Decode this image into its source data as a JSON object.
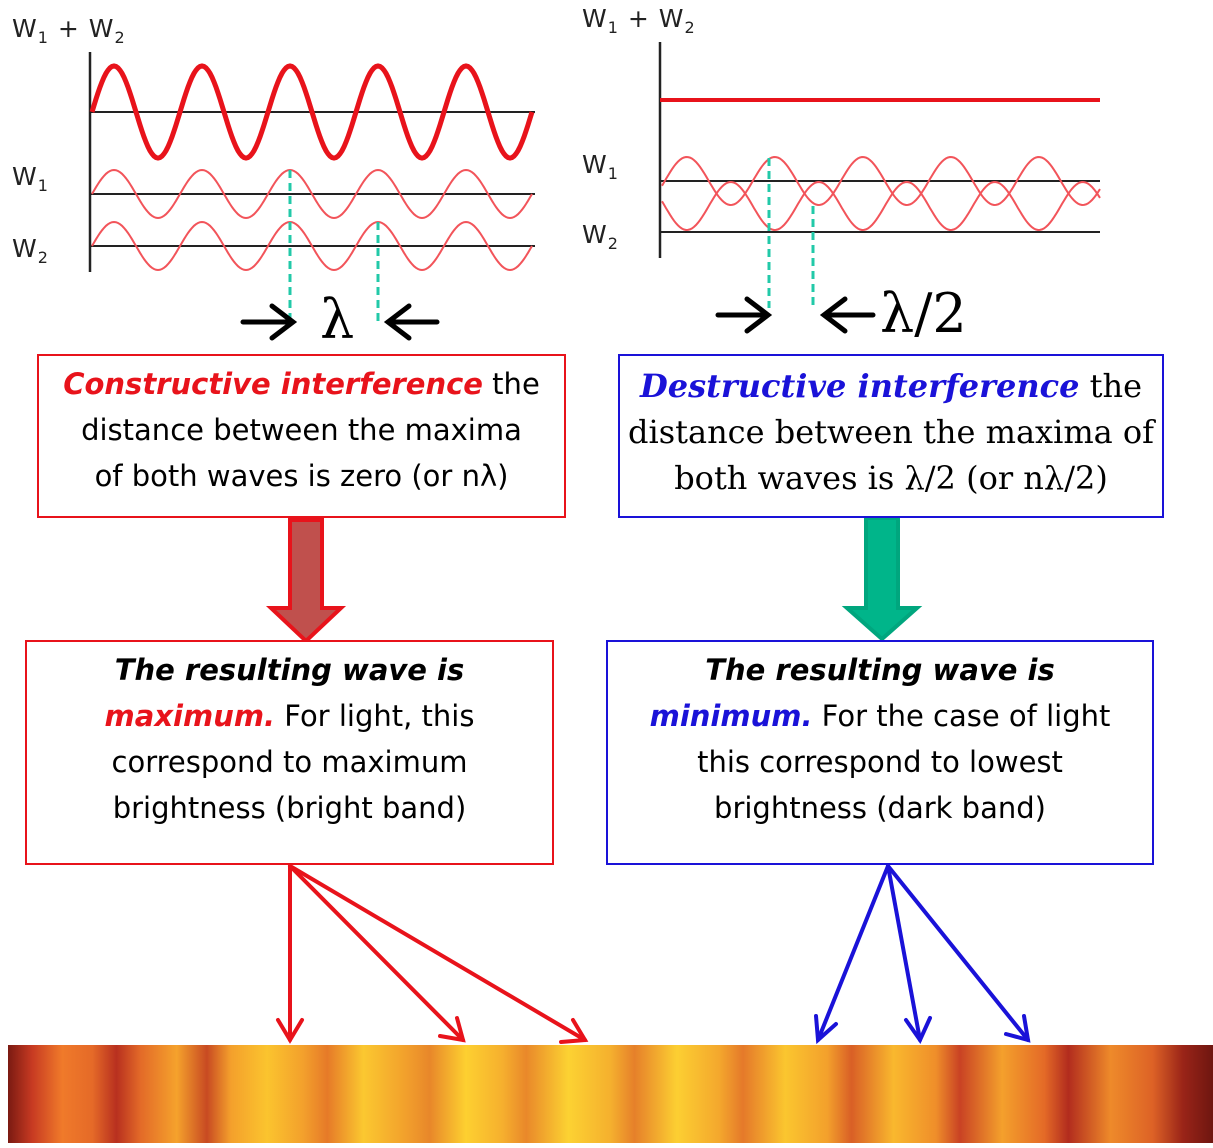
{
  "left_panel": {
    "label_sum": "W",
    "label_w1": "W",
    "label_w2": "W",
    "wavelength_symbol": "λ",
    "box1_title": "Constructive interference",
    "box1_text_a": " the",
    "box1_text_b": "distance between the maxima",
    "box1_text_c": "of both waves is zero (or nλ)",
    "box2_heading": "The resulting wave is",
    "box2_highlight": "maximum.",
    "box2_text_a": " For light, this",
    "box2_text_b": "correspond to maximum",
    "box2_text_c": "brightness (bright band)"
  },
  "right_panel": {
    "label_sum": "W",
    "label_w1": "W",
    "label_w2": "W",
    "half_wavelength_symbol": "λ/2",
    "box1_title": "Destructive interference",
    "box1_text_a": " the",
    "box1_text_b": "distance between the maxima of",
    "box1_text_c": "both waves is λ/2 (or nλ/2)",
    "box2_heading": "The resulting wave is",
    "box2_highlight": "minimum.",
    "box2_text_a": " For the case of light",
    "box2_text_b": "this correspond to lowest",
    "box2_text_c": "brightness (dark band)"
  },
  "subscripts": {
    "one": "1",
    "two": "2",
    "plus": " + "
  },
  "colors": {
    "red": "#e8131b",
    "blue": "#1a12d8",
    "teal": "#00a67e",
    "dashed": "#22c9a8",
    "arrow_red_fill": "#c0504d"
  }
}
